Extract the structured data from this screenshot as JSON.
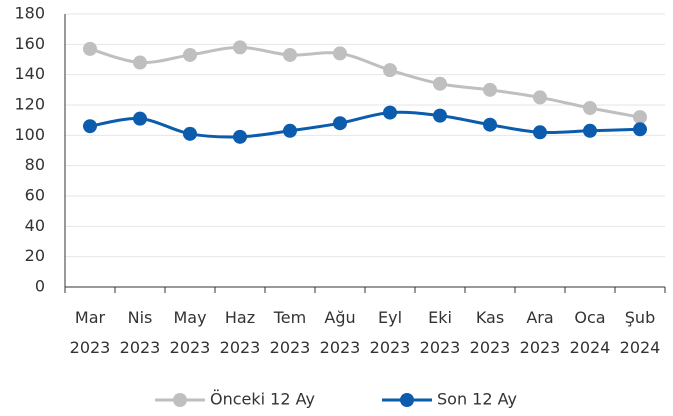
{
  "chart_data": {
    "type": "line",
    "categories": [
      "Mar 2023",
      "Nis 2023",
      "May 2023",
      "Haz 2023",
      "Tem 2023",
      "Ağu 2023",
      "Eyl 2023",
      "Eki 2023",
      "Kas 2023",
      "Ara 2023",
      "Oca 2024",
      "Şub 2024"
    ],
    "series": [
      {
        "name": "Önceki 12 Ay",
        "color": "#bfbfbf",
        "values": [
          157,
          148,
          153,
          158,
          153,
          154,
          143,
          134,
          130,
          125,
          118,
          112
        ]
      },
      {
        "name": "Son 12 Ay",
        "color": "#0b5cad",
        "values": [
          106,
          111,
          101,
          99,
          103,
          108,
          115,
          113,
          107,
          102,
          103,
          104
        ]
      }
    ],
    "ylim": [
      0,
      180
    ],
    "yticks": [
      0,
      20,
      40,
      60,
      80,
      100,
      120,
      140,
      160,
      180
    ],
    "grid": true,
    "legend": "bottom"
  }
}
